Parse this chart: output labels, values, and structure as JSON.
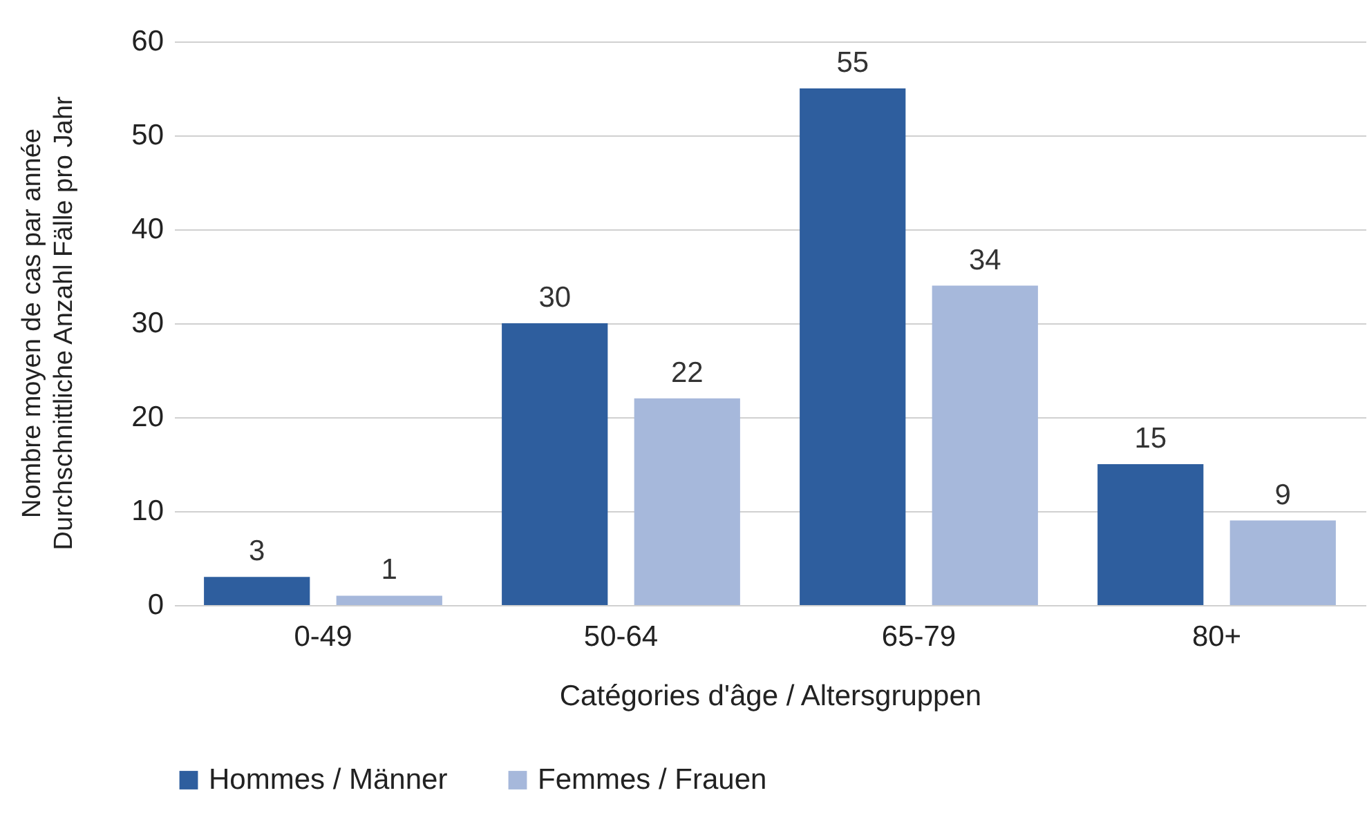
{
  "chart_data": {
    "type": "bar",
    "xlabel": "Catégories d'âge / Altersgruppen",
    "ylabel": "Nombre moyen de cas par année\nDurchschnittliche Anzahl Fälle pro Jahr",
    "categories": [
      "0-49",
      "50-64",
      "65-79",
      "80+"
    ],
    "series": [
      {
        "name": "Hommes / Männer",
        "color": "#2e5e9e",
        "values": [
          3,
          30,
          55,
          15
        ]
      },
      {
        "name": "Femmes / Frauen",
        "color": "#a6b8db",
        "values": [
          1,
          22,
          34,
          9
        ]
      }
    ],
    "ylim": [
      0,
      60
    ],
    "yticks": [
      0,
      10,
      20,
      30,
      40,
      50,
      60
    ],
    "grid": "y",
    "legend": "bottom",
    "data_labels": true
  }
}
